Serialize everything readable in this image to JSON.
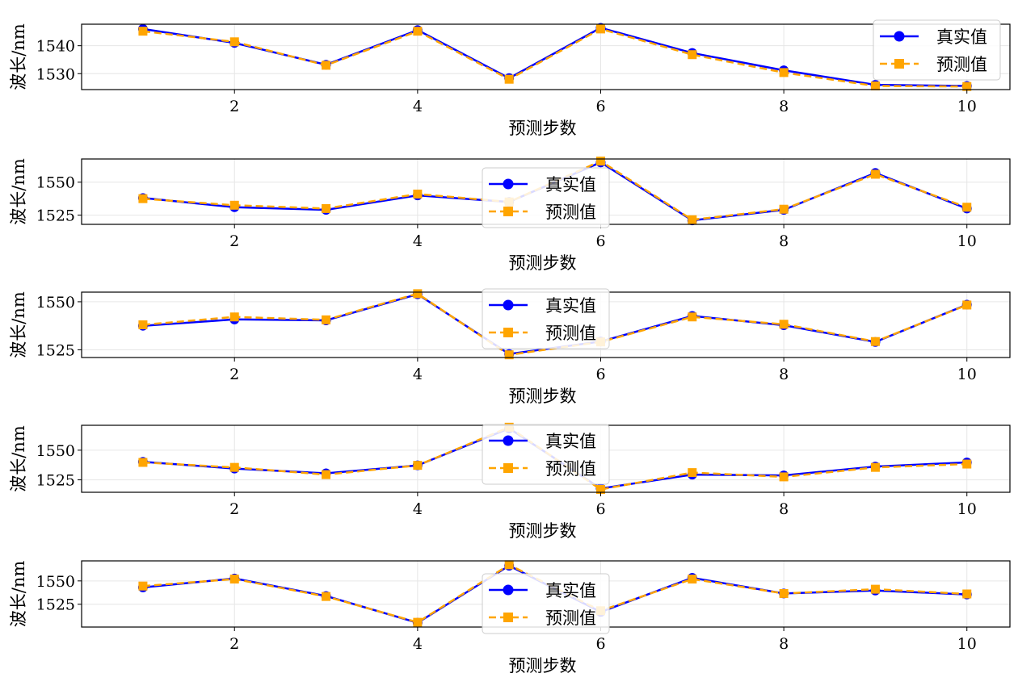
{
  "chart_data": [
    {
      "type": "line",
      "x": [
        1,
        2,
        3,
        4,
        5,
        6,
        7,
        8,
        9,
        10
      ],
      "xlabel": "预测步数",
      "ylabel": "波长/nm",
      "xlim": [
        0.33,
        10.47
      ],
      "ylim": [
        1524.3,
        1547.7
      ],
      "xticks": [
        2,
        4,
        6,
        8,
        10
      ],
      "yticks": [
        1530,
        1540
      ],
      "grid": true,
      "legend_position": "top-right",
      "series": [
        {
          "name": "真实值",
          "color": "#0000ff",
          "style": "solid",
          "marker": "circle",
          "values": [
            1546.0,
            1541.0,
            1533.2,
            1545.6,
            1528.4,
            1546.4,
            1537.4,
            1531.2,
            1526.0,
            1525.6
          ]
        },
        {
          "name": "预测值",
          "color": "#ffa500",
          "style": "dashed",
          "marker": "square",
          "values": [
            1545.2,
            1541.4,
            1533.0,
            1545.2,
            1528.0,
            1546.0,
            1536.8,
            1530.4,
            1525.6,
            1525.4
          ]
        }
      ]
    },
    {
      "type": "line",
      "x": [
        1,
        2,
        3,
        4,
        5,
        6,
        7,
        8,
        9,
        10
      ],
      "xlabel": "预测步数",
      "ylabel": "波长/nm",
      "xlim": [
        0.33,
        10.47
      ],
      "ylim": [
        1518.0,
        1567.6
      ],
      "xticks": [
        2,
        4,
        6,
        8,
        10
      ],
      "yticks": [
        1525,
        1550
      ],
      "grid": true,
      "legend_position": "upper-center",
      "series": [
        {
          "name": "真实值",
          "color": "#0000ff",
          "style": "solid",
          "marker": "circle",
          "values": [
            1538.0,
            1531.0,
            1529.0,
            1540.0,
            1535.0,
            1565.0,
            1521.0,
            1529.0,
            1557.0,
            1530.0
          ]
        },
        {
          "name": "预测值",
          "color": "#ffa500",
          "style": "dashed",
          "marker": "square",
          "values": [
            1537.5,
            1532.5,
            1530.0,
            1541.0,
            1535.0,
            1566.0,
            1521.5,
            1529.5,
            1556.0,
            1531.0
          ]
        }
      ]
    },
    {
      "type": "line",
      "x": [
        1,
        2,
        3,
        4,
        5,
        6,
        7,
        8,
        9,
        10
      ],
      "xlabel": "预测步数",
      "ylabel": "波长/nm",
      "xlim": [
        0.33,
        10.47
      ],
      "ylim": [
        1521.0,
        1555.0
      ],
      "xticks": [
        2,
        4,
        6,
        8,
        10
      ],
      "yticks": [
        1525,
        1550
      ],
      "grid": true,
      "legend_position": "upper-center",
      "series": [
        {
          "name": "真实值",
          "color": "#0000ff",
          "style": "solid",
          "marker": "circle",
          "values": [
            1537.5,
            1540.8,
            1540.3,
            1553.9,
            1522.8,
            1529.3,
            1542.6,
            1537.8,
            1529.1,
            1548.5
          ]
        },
        {
          "name": "预测值",
          "color": "#ffa500",
          "style": "dashed",
          "marker": "square",
          "values": [
            1538.0,
            1542.1,
            1540.6,
            1554.2,
            1522.4,
            1529.1,
            1542.1,
            1538.3,
            1529.3,
            1548.3
          ]
        }
      ]
    },
    {
      "type": "line",
      "x": [
        1,
        2,
        3,
        4,
        5,
        6,
        7,
        8,
        9,
        10
      ],
      "xlabel": "预测步数",
      "ylabel": "波长/nm",
      "xlim": [
        0.33,
        10.47
      ],
      "ylim": [
        1514.5,
        1571.0
      ],
      "xticks": [
        2,
        4,
        6,
        8,
        10
      ],
      "yticks": [
        1525,
        1550
      ],
      "grid": true,
      "legend_position": "upper-center",
      "series": [
        {
          "name": "真实值",
          "color": "#0000ff",
          "style": "solid",
          "marker": "circle",
          "values": [
            1540.2,
            1534.5,
            1530.5,
            1537.2,
            1568.4,
            1517.7,
            1529.4,
            1528.7,
            1536.2,
            1539.7
          ]
        },
        {
          "name": "预测值",
          "color": "#ffa500",
          "style": "dashed",
          "marker": "square",
          "values": [
            1539.7,
            1535.5,
            1529.4,
            1537.2,
            1569.4,
            1516.9,
            1531.1,
            1527.5,
            1535.5,
            1538.3
          ]
        }
      ]
    },
    {
      "type": "line",
      "x": [
        1,
        2,
        3,
        4,
        5,
        6,
        7,
        8,
        9,
        10
      ],
      "xlabel": "预测步数",
      "ylabel": "波长/nm",
      "xlim": [
        0.33,
        10.47
      ],
      "ylim": [
        1500.5,
        1571.5
      ],
      "xticks": [
        2,
        4,
        6,
        8,
        10
      ],
      "yticks": [
        1525,
        1550
      ],
      "grid": true,
      "legend_position": "upper-center",
      "series": [
        {
          "name": "真实值",
          "color": "#0000ff",
          "style": "solid",
          "marker": "circle",
          "values": [
            1543.0,
            1552.6,
            1533.8,
            1505.1,
            1566.3,
            1516.7,
            1553.3,
            1536.5,
            1539.7,
            1535.5
          ]
        },
        {
          "name": "预测值",
          "color": "#ffa500",
          "style": "dashed",
          "marker": "square",
          "values": [
            1544.5,
            1552.0,
            1533.3,
            1505.6,
            1567.3,
            1518.0,
            1552.0,
            1536.5,
            1541.1,
            1536.0
          ]
        }
      ]
    }
  ]
}
